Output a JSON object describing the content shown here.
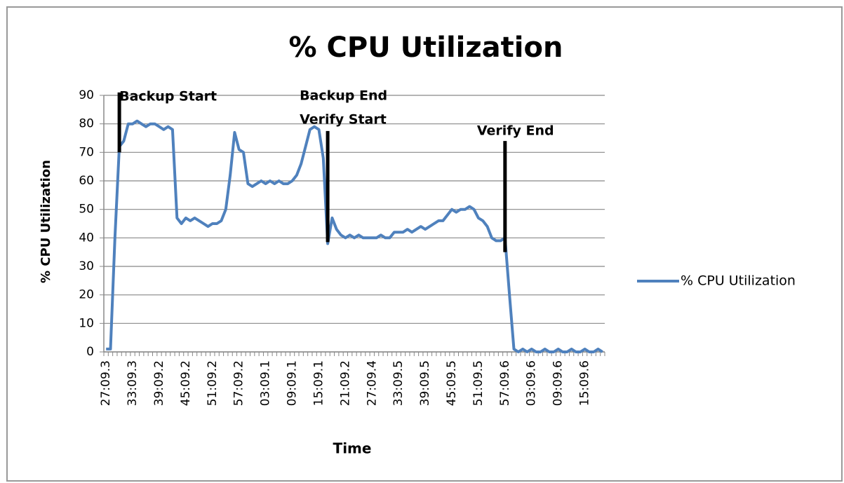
{
  "chart_data": {
    "type": "line",
    "title": "% CPU Utilization",
    "x_label": "Time",
    "y_label": "% CPU Utilization",
    "categories": [
      "27:09.3",
      null,
      null,
      null,
      null,
      null,
      "33:09.3",
      null,
      null,
      null,
      null,
      null,
      "39:09.2",
      null,
      null,
      null,
      null,
      null,
      "45:09.2",
      null,
      null,
      null,
      null,
      null,
      "51:09.2",
      null,
      null,
      null,
      null,
      null,
      "57:09.2",
      null,
      null,
      null,
      null,
      null,
      "03:09.1",
      null,
      null,
      null,
      null,
      null,
      "09:09.1",
      null,
      null,
      null,
      null,
      null,
      "15:09.1",
      null,
      null,
      null,
      null,
      null,
      "21:09.2",
      null,
      null,
      null,
      null,
      null,
      "27:09.4",
      null,
      null,
      null,
      null,
      null,
      "33:09.5",
      null,
      null,
      null,
      null,
      null,
      "39:09.5",
      null,
      null,
      null,
      null,
      null,
      "45:09.5",
      null,
      null,
      null,
      null,
      null,
      "51:09.5",
      null,
      null,
      null,
      null,
      null,
      "57:09.6",
      null,
      null,
      null,
      null,
      null,
      "03:09.6",
      null,
      null,
      null,
      null,
      null,
      "09:09.6",
      null,
      null,
      null,
      null,
      null,
      "15:09.6",
      null,
      null,
      null,
      null
    ],
    "series": [
      {
        "name": "% CPU Utilization",
        "color": "#4f81bd",
        "values": [
          1,
          1,
          40,
          72,
          74,
          80,
          80,
          81,
          80,
          79,
          80,
          80,
          79,
          78,
          79,
          78,
          47,
          45,
          47,
          46,
          47,
          46,
          45,
          44,
          45,
          45,
          46,
          50,
          62,
          77,
          71,
          70,
          59,
          58,
          59,
          60,
          59,
          60,
          59,
          60,
          59,
          59,
          60,
          62,
          66,
          72,
          78,
          79,
          78,
          68,
          38,
          47,
          43,
          41,
          40,
          41,
          40,
          41,
          40,
          40,
          40,
          40,
          41,
          40,
          40,
          42,
          42,
          42,
          43,
          42,
          43,
          44,
          43,
          44,
          45,
          46,
          46,
          48,
          50,
          49,
          50,
          50,
          51,
          50,
          47,
          46,
          44,
          40,
          39,
          39,
          40,
          20,
          1,
          0,
          1,
          0,
          1,
          0,
          0,
          1,
          0,
          0,
          1,
          0,
          0,
          1,
          0,
          0,
          1,
          0,
          0,
          1,
          0
        ]
      }
    ],
    "ylim": [
      0,
      90
    ],
    "yticks": [
      0,
      10,
      20,
      30,
      40,
      50,
      60,
      70,
      80,
      90
    ],
    "grid": true,
    "legend": "right",
    "annotations": [
      {
        "text": [
          "Backup Start"
        ],
        "x": 3,
        "y": [
          70,
          91
        ]
      },
      {
        "text": [
          "Backup End",
          "Verify Start"
        ],
        "x": 50,
        "y": [
          38.5,
          77.5
        ]
      },
      {
        "text": [
          "Verify End"
        ],
        "x": 90,
        "y": [
          35,
          74
        ]
      }
    ]
  }
}
